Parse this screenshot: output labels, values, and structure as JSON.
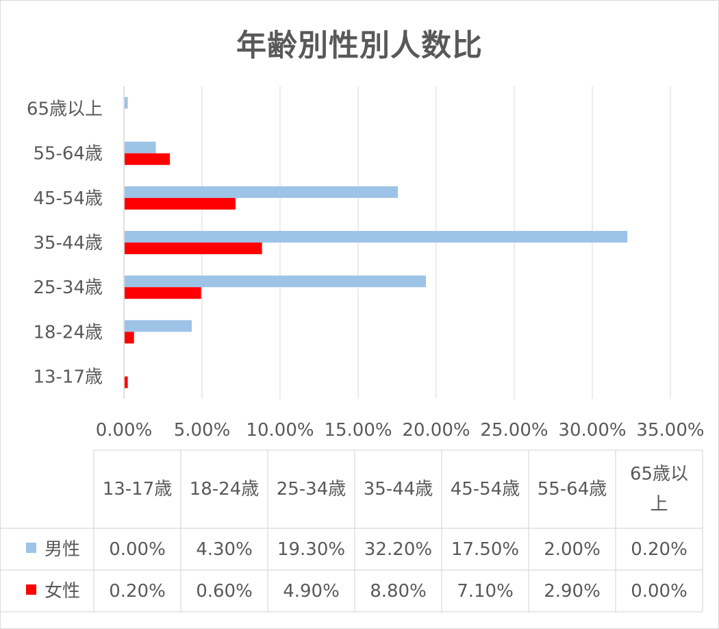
{
  "chart_data": {
    "type": "bar",
    "orientation": "horizontal",
    "title": "年齢別性別人数比",
    "categories": [
      "13-17歳",
      "18-24歳",
      "25-34歳",
      "35-44歳",
      "45-54歳",
      "55-64歳",
      "65歳以上"
    ],
    "table_headers": [
      "13-17歳",
      "18-24歳",
      "25-34歳",
      "35-44歳",
      "45-54歳",
      "55-64歳",
      "65歳以\n上"
    ],
    "series": [
      {
        "name": "男性",
        "color": "#9dc3e6",
        "values": [
          0.0,
          4.3,
          19.3,
          32.2,
          17.5,
          2.0,
          0.2
        ],
        "labels": [
          "0.00%",
          "4.30%",
          "19.30%",
          "32.20%",
          "17.50%",
          "2.00%",
          "0.20%"
        ]
      },
      {
        "name": "女性",
        "color": "#ff0000",
        "values": [
          0.2,
          0.6,
          4.9,
          8.8,
          7.1,
          2.9,
          0.0
        ],
        "labels": [
          "0.20%",
          "0.60%",
          "4.90%",
          "8.80%",
          "7.10%",
          "2.90%",
          "0.00%"
        ]
      }
    ],
    "xlim": [
      0,
      35
    ],
    "x_ticks": [
      "0.00%",
      "5.00%",
      "10.00%",
      "15.00%",
      "20.00%",
      "25.00%",
      "30.00%",
      "35.00%"
    ],
    "grid": true,
    "legend": "data-table"
  }
}
